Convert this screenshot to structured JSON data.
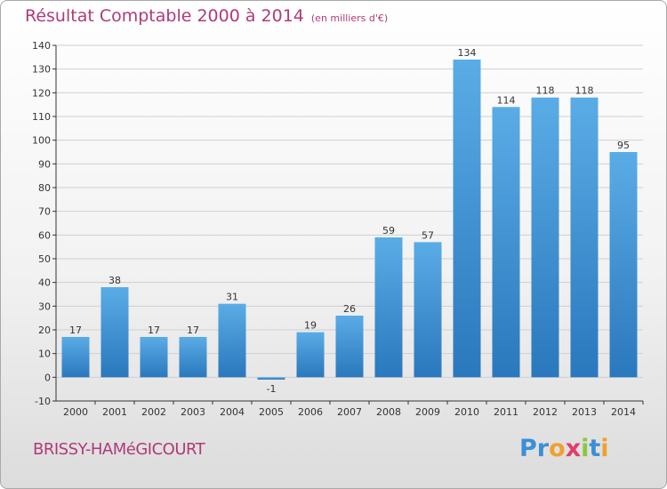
{
  "title": "Résultat Comptable 2000 à 2014",
  "subtitle": "(en milliers d'€)",
  "commune": "BRISSY-HAMéGICOURT",
  "logo": {
    "text": "Proxiti",
    "letter_colors": [
      "#3b8fd6",
      "#3b8fd6",
      "#f0a030",
      "#e23c6a",
      "#8cc63f",
      "#3b8fd6",
      "#f0a030"
    ]
  },
  "colors": {
    "title": "#b03a78",
    "bar_light": "#5aace6",
    "bar_dark": "#2a78bd",
    "axis": "#333333",
    "grid": "#d0d0d0"
  },
  "chart_data": {
    "type": "bar",
    "categories": [
      "2000",
      "2001",
      "2002",
      "2003",
      "2004",
      "2005",
      "2006",
      "2007",
      "2008",
      "2009",
      "2010",
      "2011",
      "2012",
      "2013",
      "2014"
    ],
    "values": [
      17,
      38,
      17,
      17,
      31,
      -1,
      19,
      26,
      59,
      57,
      134,
      114,
      118,
      118,
      95
    ],
    "ylim": [
      -10,
      140
    ],
    "yticks": [
      -10,
      0,
      10,
      20,
      30,
      40,
      50,
      60,
      70,
      80,
      90,
      100,
      110,
      120,
      130,
      140
    ],
    "grid": true,
    "xlabel": "",
    "ylabel": ""
  }
}
